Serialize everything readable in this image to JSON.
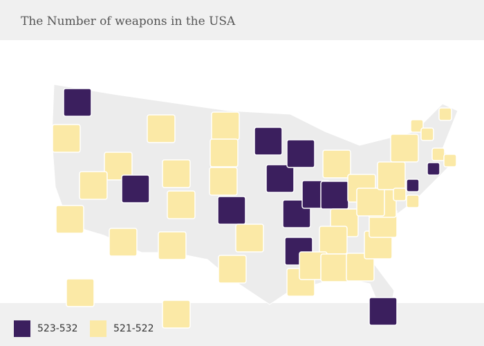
{
  "chart_data": {
    "type": "choropleth",
    "title": "The Number of weapons in the USA",
    "legend": [
      {
        "label": "523-532",
        "color": "#3b1f5e"
      },
      {
        "label": "521-522",
        "color": "#fbe9a6"
      }
    ],
    "regions": [
      0,
      1,
      1,
      1,
      1,
      1,
      1,
      0,
      1,
      1,
      1,
      1,
      1,
      1,
      0,
      1,
      1,
      0,
      0,
      0,
      1,
      0,
      1,
      0,
      0,
      0,
      1,
      1,
      1,
      1,
      0,
      1,
      1,
      1,
      1,
      1,
      1,
      1,
      1,
      1,
      1,
      1,
      1,
      0,
      0,
      1,
      1,
      1,
      1,
      1
    ]
  }
}
